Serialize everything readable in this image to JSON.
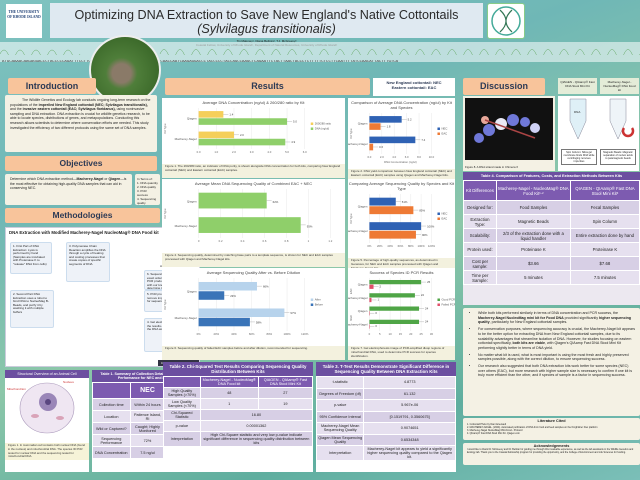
{
  "header": {
    "uri_logo": "THE UNIVERSITY OF RHODE ISLAND",
    "title": "Optimizing DNA Extraction to Save New England's Native Cottontails ",
    "title_italic": "(Sylvilagus transitionalis)",
    "authors": "Tin Maloney¹, Diana Beltrán², T.J. McGreevy²",
    "affiliations": "Coastal Fellow, University of Rhode Island¹, Department of Natural Resources, University of Rhode Island²",
    "right_logo": "Wildlife Genetics and Ecology Lab"
  },
  "sequence": "ATGCAAAACAAGAGGACCCTACCCCCAGATTTCCTTCTCCTTCAATTTTATCCAACATTACTTTGTCAACCAATCAAGAGGACCCTACCCCCTACCAGCCAAGCTCAGAATTCTACTTAACTACCCTCTTTTTCTCCTTCAATTTTATCCAACATTACTTTGTCA",
  "intro": {
    "heading": "Introduction",
    "text_a": "The Wildlife Genetics and Ecology lab conducts ongoing long-term research on the populations of the ",
    "b1": "imperiled New England cottontail (NEC; Sylvilagus transitionalis),",
    "text_b": " and the ",
    "b2": "invasive eastern cottontail (EAC; Sylvilagus floridanus),",
    "text_c": " using noninvasive sampling and DNA extraction. DNA extraction is crucial for wildlife genetics research, to be able to locate species, distributions of genes, and metapopulations. Conducting this research allows scientists to determine where conservation efforts are needed. This study investigated the efficiency of two different protocols using the same set of DNA samples."
  },
  "objectives": {
    "heading": "Objectives",
    "text_a": "Determine which DNA extraction method—",
    "b1": "Macherey-Nagel",
    "text_b": " or ",
    "b2": "Qiagen",
    "text_c": "—is the most effective for obtaining high-quality DNA samples that can aid in conserving NEC.",
    "list_title": "In Terms of:",
    "list": [
      "1. DNA quantity",
      "2. DNA quality",
      "3. PCR success",
      "4. Sequencing quality"
    ]
  },
  "methods": {
    "heading": "Methodologies",
    "fig_title": "DNA Extraction with Modified Macherey-Nagel NucleoMag® DNA Food kit",
    "steps": [
      "1. First Part of DNA Extraction: Lysis is performed by hand (Samples are incubated with Proteinase K to \"release\" DNA from cells)",
      "2. Second Part DNA Extraction uses a robot to bind DNA to NucleoMag B-Beads, and purify it by washing it with multiple buffers",
      "3. Polymerase Chain Reaction amplifies the DNA through a cycle of heating and cooling processes that create copies of specific segments of DNA",
      "4. Gel electrophoresis visualizes the results of the PCR to see if the DNA was amplified",
      "5. PCR product is cleaned to remove impurities and prepare for sequencing",
      "6. Sequencing determines the exact order of nucleotides in the PCR product, which are compared with our known samples to determine the species"
    ],
    "seq_label": "AGTCGTTAATCGA",
    "credit": "Created in BioRender.com"
  },
  "cell": {
    "title": "Structural Overview of an Animal Cell",
    "label_nucleus": "Nucleus",
    "label_mito": "Mitochondrion",
    "caption": "Figure 1. In mammalian cell contains both nuclear DNA (found in the nucleus) and mitochondrial DNA. The species ID PCR tested for nuclear DNA and the sequencing tested for mitochondrial DNA."
  },
  "table1": {
    "title": "Table 1. Summary of Collection Details and Sample Performance for NEC and EAC",
    "headers": [
      "",
      "NEC",
      "EAC"
    ],
    "rows": [
      [
        "Collection time",
        "Within 24 hours",
        "Unknown"
      ],
      [
        "Location",
        "Patience Island, RI",
        "Connecticut"
      ],
      [
        "Wild or Captured?",
        "Caught; Highly Monitored",
        "Wild; Not monitored"
      ],
      [
        "Sequencing Performance",
        "72%",
        "87%"
      ],
      [
        "DNA Concentration",
        "7.5 ng/ul",
        "2.4 ng/ul"
      ]
    ]
  },
  "results": {
    "heading": "Results",
    "species_key": [
      "New England cottontail: NEC",
      "Eastern cottontail: EAC"
    ]
  },
  "chart_data": [
    {
      "id": "fig1",
      "type": "bar",
      "orientation": "horizontal",
      "title": "Average DNA Concentration (ng/ul) & 260/280 ratio by Kit",
      "ylabel": "Kit Type",
      "categories": [
        "Qiagen",
        "Macherey-Nagel"
      ],
      "series": [
        {
          "name": "260/280 ratio",
          "values": [
            1.4,
            2.0
          ],
          "color": "#f5cf5a"
        },
        {
          "name": "DNA (ng/ul)",
          "values": [
            5.0,
            4.9
          ],
          "color": "#8fcf6a"
        }
      ],
      "labels": [
        [
          "1.4",
          "5.0"
        ],
        [
          "2.0",
          "4.9"
        ]
      ],
      "xlim": [
        0,
        6
      ],
      "ticks": [
        "0.0",
        "1.0",
        "2.0",
        "3.0",
        "4.0",
        "5.0",
        "6.0"
      ],
      "legend": "right",
      "caption": "Figure 1. The 260/280 ratio, an indicator of DNA purity, is shown alongside DNA concentration for both kits, comparing New England cottontail (NEC) and Eastern cottontail (EAC) samples."
    },
    {
      "id": "fig2",
      "type": "bar",
      "orientation": "horizontal",
      "title": "Comparison of Average DNA Concentration (ng/ul) by Kit and Species",
      "ylabel": "Kit Type",
      "xlabel": "DNA Concentration (ng/ul)",
      "categories": [
        "Qiagen",
        "Macherey-Nagel"
      ],
      "series": [
        {
          "name": "NEC",
          "values": [
            5.2,
            7.4
          ],
          "color": "#2f62b4"
        },
        {
          "name": "EAC",
          "values": [
            1.8,
            0.6
          ],
          "color": "#ee7a35"
        }
      ],
      "labels": [
        [
          "5.2",
          "1.8"
        ],
        [
          "7.4",
          "0.6"
        ]
      ],
      "xlim": [
        0,
        10
      ],
      "ticks": [
        "0.0",
        "2.0",
        "4.0",
        "6.0",
        "8.0",
        "10.0"
      ],
      "legend": "right",
      "caption": "Figure 2. DNA yield comparison between New England cottontail (NEC) and Eastern cottontail (EAC) samples using Qiagen and Macherey-Nagel kits."
    },
    {
      "id": "fig4",
      "type": "bar",
      "orientation": "horizontal",
      "title": "Average Mean DNA Sequencing Quality of Combined EAC + NEC",
      "ylabel": "Kit Type",
      "categories": [
        "Qiagen",
        "Macherey-Nagel"
      ],
      "series": [
        {
          "name": "",
          "values": [
            0.62,
            0.93
          ],
          "color": "#8fcf6a"
        }
      ],
      "labels": [
        [
          "62%"
        ],
        [
          "93%"
        ]
      ],
      "xlim": [
        0,
        1.2
      ],
      "ticks": [
        "0",
        "0.2",
        "0.4",
        "0.6",
        "0.8",
        "1",
        "1.2"
      ],
      "legend": "none",
      "caption": "Figure 4. Sequencing quality, determined by matching base pairs to a template sequence, is shown for NEC and EAC samples processed with Qiagen and Macherey-Nagel kits."
    },
    {
      "id": "fig5",
      "type": "bar",
      "orientation": "horizontal",
      "title": "Comparing Average Sequencing Quality by Species and Kit Type",
      "ylabel": "Kit Type",
      "categories": [
        "Qiagen",
        "Macherey-Nagel"
      ],
      "series": [
        {
          "name": "NEC",
          "values": [
            51,
            100
          ],
          "color": "#2f62b4"
        },
        {
          "name": "EAC",
          "values": [
            85,
            90
          ],
          "color": "#ee7a35"
        }
      ],
      "labels": [
        [
          "51%",
          "85%"
        ],
        [
          "100%",
          "90%"
        ]
      ],
      "xlim": [
        0,
        120
      ],
      "ticks": [
        "0%",
        "20%",
        "40%",
        "60%",
        "80%",
        "100%",
        "120%"
      ],
      "legend": "right",
      "caption": "Figure 5. Percentage of high-quality sequences, as determined in Geneious, for NEC and EAC samples processed with Qiagen and Macherey-Nagel kits."
    },
    {
      "id": "fig6",
      "type": "bar",
      "orientation": "horizontal",
      "title": "Average Sequencing Quality After vs. Before Dilution",
      "ylabel": "Kit Type",
      "categories": [
        "Qiagen",
        "Macherey-Nagel"
      ],
      "series": [
        {
          "name": "After",
          "values": [
            66,
            97
          ],
          "color": "#b7d3ec"
        },
        {
          "name": "Before",
          "values": [
            29,
            58
          ],
          "color": "#3a74b8"
        }
      ],
      "labels": [
        [
          "66%",
          "29%"
        ],
        [
          "97%",
          "58%"
        ]
      ],
      "xlim": [
        0,
        120
      ],
      "ticks": [
        "0%",
        "20%",
        "40%",
        "60%",
        "80%",
        "100%",
        "120%"
      ],
      "legend": "right",
      "caption": "Figure 6. Sequencing quality of failed EAC samples before and after dilution, recommended for sequencing."
    },
    {
      "id": "fig7",
      "type": "bar",
      "orientation": "horizontal",
      "title": "Success of Species ID PCR Results",
      "ylabel": "",
      "categories": [
        "Qiagen",
        "Macherey-Nagel",
        "Qiagen",
        "Macherey-Nagel"
      ],
      "groups": [
        "EAC",
        "NEC"
      ],
      "series": [
        {
          "name": "Good PCR",
          "values": [
            25,
            22,
            24,
            24
          ],
          "color": "#4fa546"
        },
        {
          "name": "Failed PCR",
          "values": [
            2,
            1,
            0,
            0
          ],
          "color": "#e0506a"
        }
      ],
      "labels": [
        [
          "25",
          "2"
        ],
        [
          "22",
          "1"
        ],
        [
          "24",
          "0"
        ],
        [
          "24",
          "0"
        ]
      ],
      "xlim": [
        0,
        30
      ],
      "ticks": [
        "0",
        "5",
        "10",
        "15",
        "20",
        "25",
        "30"
      ],
      "legend": "right",
      "caption": "Figure 7. Gel electrophoresis image of PCR-amplified dloop regions of mitochondrial DNA, used to determine PCR success for species identification."
    }
  ],
  "table2": {
    "title": "Table 2. Chi-Squared Test Results Comparing Sequencing Quality Distribution Between Kits",
    "headers": [
      "",
      "Macherey-Nagel - NucleoMag® DNA Food kit",
      "QIAGEN - QIAamp® Fast DNA Stool Mini Kit"
    ],
    "rows": [
      [
        "High Quality Samples (>70%)",
        "48",
        "27"
      ],
      [
        "Low Quality Samples (<70%)",
        "1",
        "19"
      ]
    ],
    "span_rows": [
      [
        "Chi-Squared Statistic",
        "16.80"
      ],
      [
        "p-value",
        "0.00001362"
      ],
      [
        "Interpretation",
        "High Chi-Square statistic and very low p-value indicate significant difference in sequencing quality distribution between kits"
      ]
    ]
  },
  "table3": {
    "title": "Table 3. T-Test Results Demonstrate Significant Difference in Sequencing Quality Between DNA Extraction Kits",
    "rows": [
      [
        "t-statistic",
        "4.8773"
      ],
      [
        "Degrees of Freedom (df)",
        "61.132"
      ],
      [
        "p-value",
        "5.967e-06"
      ],
      [
        "95% Confidence Interval",
        "[0.1519791, 0.3560675]"
      ],
      [
        "Macherey-Nagel Mean Sequencing Quality",
        "0.9074651"
      ],
      [
        "Qiagen Mean Sequencing Quality",
        "0.6534348"
      ],
      [
        "Interpretation",
        "Macherey-Nagel kit appears to yield a significantly higher sequencing quality compared to the Qiagen kit."
      ]
    ]
  },
  "discussion": {
    "heading": "Discussion",
    "kit_tags": [
      "QIAGEN - QIAamp® Fast DNA Stool Mini Kit",
      "Macherey-Nagel - NucleoMag® DNA Food kit"
    ],
    "fig8_caption": "Figure 8. A DNA strand made in Chimera X",
    "tube_labels": [
      "Spin Column: Silica gel membrane binds DNA while centrifuging removes impurities",
      "Magnetic Beads: Magnetic separation of nucleic acids to paramagnetic beads"
    ],
    "tube_text": "DNA",
    "bullets": [
      {
        "a": "While both kits performed similarly in terms of DNA concentration and PCR success, the ",
        "b": "Macherey-Nagel NucleoMag mini kit for Food DNA",
        "c": " provided significantly ",
        "d": "higher sequencing quality",
        "e": ", particularly for New England cottontail samples."
      },
      {
        "a": "For conservation purposes, where sequencing accuracy is crucial, the Macherey-Nagel kit appears to be the better option for extracting DNA from New England cottontail samples, due to its scalability advantages that streamline isolation of DNA. However, for studies focusing on eastern cottontail specifically, ",
        "b": "both kits are viable",
        "c": ", with Qiagen's QIAamp Fast DNA Stool Mini Kit performing slightly better in terms of DNA yield.",
        "d": "",
        "e": ""
      },
      {
        "a": "No matter what kit is used, what is most important is using the most fresh and highly preserved samples possible, along with the correct dilution, to ensure sequencing success.",
        "b": "",
        "c": "",
        "d": "",
        "e": ""
      },
      {
        "a": "Our research also suggested that both DNA extraction kits work better for some species (NEC) over others (EAC), but more research with higher sample size is necessary to confirm if one kit is truly more efficient than the other, and if species of sample is a factor in sequencing success.",
        "b": "",
        "c": "",
        "d": "",
        "e": ""
      }
    ]
  },
  "table4": {
    "title": "Table 4. Comparison of Features, Costs, and Extraction Methods Between Kits",
    "headers": [
      "Kit Differences",
      "Macherey-Nagel - NucleoMag® DNA Food Kit¹·²",
      "QIAGEN - QIAamp® Fast DNA Stool Mini Kit³"
    ],
    "rows": [
      [
        "Designed for:",
        "Food Samples",
        "Fecal Samples"
      ],
      [
        "Extraction Type:",
        "Magnetic Beads",
        "Spin Column"
      ],
      [
        "Scalability:",
        "2/3 of the extraction done with a liquid handler",
        "Entire extraction done by hand"
      ],
      [
        "Protein used:",
        "Proteinase K",
        "Proteinase K"
      ],
      [
        "Cost per sample:",
        "$3.66",
        "$7.68"
      ],
      [
        "Time per Sample:",
        "5 minutes",
        "7.5 minutes"
      ]
    ]
  },
  "literature": {
    "title": "Literature Cited",
    "items": [
      "1. Cottontail Photo by Dani Arsenault",
      "2. MACHEREY-NAGEL. (2024). Automated purification of DNA from food and feed samples on the KingFisher Flex platform",
      "3. Macherey-Nagel NucleoMag DNA Food - Protocol",
      "4. QIAamp® Fast DNA Stool Mini Kit. Qiagen.com"
    ]
  },
  "ack": {
    "title": "Acknowledgements",
    "text": "I would like to thank Dr. McGreevy and Dr. Beltrán for guiding me through this invaluable experience, as well as the lab assistants in the Wildlife Genetics and Ecology lab. Thank you to the Coastal Fellowship program for providing the opportunity, and the College of Environment and Life Sciences for funding."
  }
}
